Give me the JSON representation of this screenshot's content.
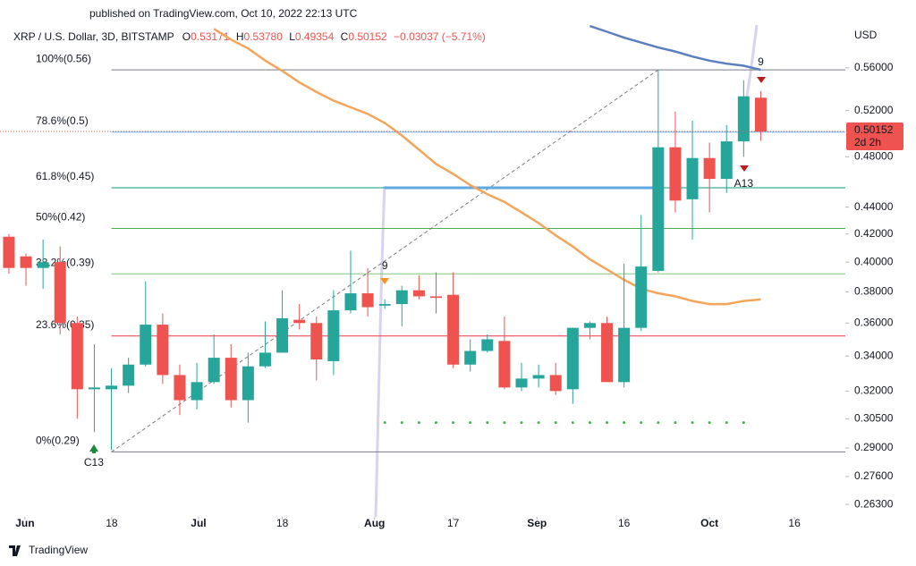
{
  "chart_data": {
    "type": "candlestick",
    "published": "published on TradingView.com, Oct 10, 2022 22:13 UTC",
    "title": "XRP / U.S. Dollar, 3D, BITSTAMP",
    "ohlc_labels": [
      "O",
      "H",
      "L",
      "C"
    ],
    "ohlc_value_labels": [
      "0.53171",
      "0.53780",
      "0.49354",
      "0.50152"
    ],
    "change_label": "−0.03037 (−5.71%)",
    "y_axis_label": "USD",
    "countdown": "2d 2h",
    "brand": "TradingView",
    "log_scale": true,
    "up_color": "#26a69a",
    "down_color": "#ef5350",
    "open": [
      0.418,
      0.404,
      0.396,
      0.4,
      0.36,
      0.321,
      0.321,
      0.323,
      0.335,
      0.359,
      0.329,
      0.315,
      0.325,
      0.339,
      0.315,
      0.334,
      0.342,
      0.362,
      0.36,
      0.337,
      0.368,
      0.379,
      0.371,
      0.372,
      0.381,
      0.377,
      0.378,
      0.335,
      0.343,
      0.349,
      0.322,
      0.327,
      0.329,
      0.321,
      0.357,
      0.36,
      0.325,
      0.357,
      0.394,
      0.488,
      0.446,
      0.479,
      0.462,
      0.493,
      0.53171
    ],
    "high": [
      0.42,
      0.406,
      0.416,
      0.411,
      0.364,
      0.347,
      0.333,
      0.339,
      0.387,
      0.366,
      0.335,
      0.336,
      0.353,
      0.347,
      0.342,
      0.361,
      0.381,
      0.372,
      0.364,
      0.381,
      0.408,
      0.396,
      0.375,
      0.384,
      0.391,
      0.393,
      0.393,
      0.35,
      0.353,
      0.364,
      0.336,
      0.335,
      0.336,
      0.357,
      0.361,
      0.364,
      0.399,
      0.434,
      0.558,
      0.519,
      0.511,
      0.492,
      0.507,
      0.548,
      0.5378
    ],
    "low": [
      0.392,
      0.384,
      0.382,
      0.353,
      0.305,
      0.298,
      0.289,
      0.319,
      0.334,
      0.324,
      0.307,
      0.31,
      0.324,
      0.311,
      0.303,
      0.333,
      0.342,
      0.356,
      0.326,
      0.329,
      0.366,
      0.364,
      0.369,
      0.358,
      0.375,
      0.366,
      0.333,
      0.331,
      0.342,
      0.321,
      0.32,
      0.322,
      0.318,
      0.313,
      0.35,
      0.325,
      0.322,
      0.355,
      0.393,
      0.436,
      0.416,
      0.436,
      0.451,
      0.48,
      0.49354
    ],
    "close": [
      0.396,
      0.396,
      0.4,
      0.36,
      0.321,
      0.322,
      0.323,
      0.335,
      0.359,
      0.329,
      0.315,
      0.325,
      0.339,
      0.315,
      0.334,
      0.342,
      0.363,
      0.36,
      0.338,
      0.368,
      0.379,
      0.37,
      0.372,
      0.381,
      0.377,
      0.376,
      0.335,
      0.343,
      0.35,
      0.322,
      0.327,
      0.329,
      0.32,
      0.357,
      0.36,
      0.325,
      0.357,
      0.397,
      0.488,
      0.445,
      0.479,
      0.462,
      0.493,
      0.533,
      0.50152
    ],
    "moving_averages": [
      {
        "color": "#f5a55b",
        "values": [
          null,
          null,
          null,
          null,
          null,
          null,
          null,
          null,
          null,
          null,
          null,
          null,
          0.599,
          0.588,
          0.579,
          0.567,
          0.557,
          0.546,
          0.537,
          0.529,
          0.523,
          0.517,
          0.509,
          0.498,
          0.486,
          0.474,
          0.466,
          0.457,
          0.45,
          0.444,
          0.436,
          0.428,
          0.419,
          0.411,
          0.402,
          0.395,
          0.388,
          0.382,
          0.379,
          0.377,
          0.374,
          0.372,
          0.372,
          0.374,
          0.375
        ]
      },
      {
        "color": "#5b7fc0",
        "values": [
          null,
          null,
          null,
          null,
          null,
          null,
          null,
          null,
          null,
          null,
          null,
          null,
          null,
          null,
          null,
          null,
          null,
          null,
          null,
          null,
          null,
          null,
          null,
          null,
          null,
          null,
          null,
          null,
          null,
          null,
          null,
          null,
          null,
          null,
          0.602,
          0.596,
          0.59,
          0.585,
          0.58,
          0.576,
          0.571,
          0.567,
          0.564,
          0.562,
          0.558
        ]
      }
    ],
    "fib_levels": [
      {
        "label": "100%(0.56)",
        "value": 0.558,
        "color": "#787b86"
      },
      {
        "label": "78.6%(0.5)",
        "value": 0.501,
        "color": "#64b5f6"
      },
      {
        "label": "61.8%(0.45)",
        "value": 0.455,
        "color": "#089981"
      },
      {
        "label": "50%(0.42)",
        "value": 0.424,
        "color": "#4caf50"
      },
      {
        "label": "38.2%(0.39)",
        "value": 0.392,
        "color": "#81c784"
      },
      {
        "label": "23.6%(0.35)",
        "value": 0.352,
        "color": "#f23645"
      },
      {
        "label": "0%(0.29)",
        "value": 0.288,
        "color": "#787b86"
      }
    ],
    "fib_anchor": {
      "x": [
        6,
        38
      ],
      "y": [
        0.288,
        0.558
      ]
    },
    "level_line": {
      "value": 0.455,
      "x": [
        22,
        37.7
      ],
      "color": "#5fa8e0"
    },
    "dots": {
      "value": 0.303,
      "x": [
        22,
        43
      ],
      "color": "#4caf50"
    },
    "annotations": [
      {
        "text": "C13",
        "x": 4.97,
        "y": 0.2825,
        "color": "#c34fd6"
      },
      {
        "text": "9",
        "x": 22,
        "y": 0.397,
        "color": "#4caf50"
      },
      {
        "text": "9",
        "x": 44,
        "y": 0.565,
        "color": "#4caf50"
      },
      {
        "text": "A13",
        "x": 43,
        "y": 0.458,
        "color": "#2196f3"
      }
    ],
    "xlim": [
      -0.52,
      48.95
    ],
    "xticks": [
      {
        "value": 0.94,
        "label": "Jun"
      },
      {
        "value": 6.02,
        "label": "18"
      },
      {
        "value": 11.1,
        "label": "Jul"
      },
      {
        "value": 16.0,
        "label": "18"
      },
      {
        "value": 21.4,
        "label": "Aug"
      },
      {
        "value": 26.0,
        "label": "17"
      },
      {
        "value": 30.9,
        "label": "Sep"
      },
      {
        "value": 36.0,
        "label": "16"
      },
      {
        "value": 41.0,
        "label": "Oct"
      },
      {
        "value": 45.97,
        "label": "16"
      }
    ],
    "ylim": [
      0.2574,
      0.603
    ],
    "yticks": [
      {
        "value": 0.56,
        "label": "0.56000"
      },
      {
        "value": 0.52,
        "label": "0.52000"
      },
      {
        "value": 0.48,
        "label": "0.48000"
      },
      {
        "value": 0.44,
        "label": "0.44000"
      },
      {
        "value": 0.42,
        "label": "0.42000"
      },
      {
        "value": 0.4,
        "label": "0.40000"
      },
      {
        "value": 0.38,
        "label": "0.38000"
      },
      {
        "value": 0.36,
        "label": "0.36000"
      },
      {
        "value": 0.34,
        "label": "0.34000"
      },
      {
        "value": 0.32,
        "label": "0.32000"
      },
      {
        "value": 0.305,
        "label": "0.30500"
      },
      {
        "value": 0.29,
        "label": "0.29000"
      },
      {
        "value": 0.276,
        "label": "0.27600"
      },
      {
        "value": 0.263,
        "label": "0.26300"
      }
    ]
  }
}
